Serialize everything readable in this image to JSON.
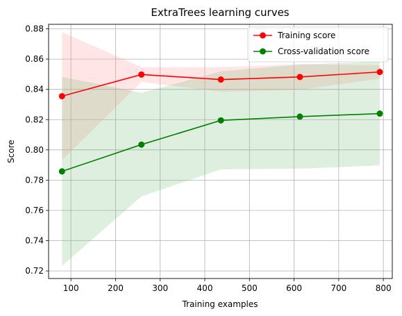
{
  "chart_data": {
    "type": "line",
    "title": "ExtraTrees learning curves",
    "xlabel": "Training examples",
    "ylabel": "Score",
    "xlim": [
      50,
      820
    ],
    "ylim": [
      0.715,
      0.883
    ],
    "x_ticks": [
      100,
      200,
      300,
      400,
      500,
      600,
      700,
      800
    ],
    "x_tick_labels": [
      "100",
      "200",
      "300",
      "400",
      "500",
      "600",
      "700",
      "800"
    ],
    "y_ticks": [
      0.72,
      0.74,
      0.76,
      0.78,
      0.8,
      0.82,
      0.84,
      0.86,
      0.88
    ],
    "y_tick_labels": [
      "0.72",
      "0.74",
      "0.76",
      "0.78",
      "0.80",
      "0.82",
      "0.84",
      "0.86",
      "0.88"
    ],
    "grid": true,
    "legend_position": "top-right",
    "x": [
      80,
      258,
      436,
      613,
      792
    ],
    "series": [
      {
        "name": "Training score",
        "color": "#ff0000",
        "band_color": "#ff9999",
        "values": [
          0.8355,
          0.8498,
          0.8465,
          0.8482,
          0.8515
        ],
        "band_low": [
          0.7932,
          0.8449,
          0.8384,
          0.8397,
          0.8471
        ],
        "band_high": [
          0.8778,
          0.8547,
          0.8546,
          0.8567,
          0.8559
        ]
      },
      {
        "name": "Cross-validation score",
        "color": "#008000",
        "band_color": "#80c080",
        "values": [
          0.7858,
          0.8035,
          0.8195,
          0.822,
          0.824
        ],
        "band_low": [
          0.7233,
          0.7693,
          0.7871,
          0.7876,
          0.7897
        ],
        "band_high": [
          0.8483,
          0.8377,
          0.8519,
          0.8564,
          0.8583
        ]
      }
    ]
  }
}
